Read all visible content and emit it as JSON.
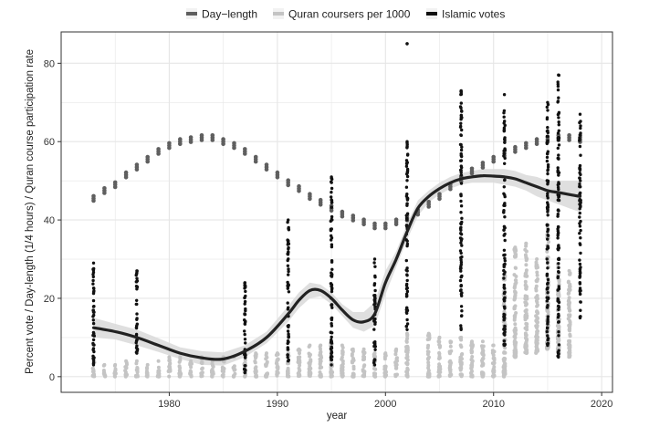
{
  "chart_data": {
    "type": "scatter",
    "title": "",
    "xlabel": "year",
    "ylabel": "Percent vote / Day-length (1/4 hours) / Quran course participation rate",
    "xlim": [
      1970,
      2021
    ],
    "ylim": [
      -4,
      88
    ],
    "x_ticks": [
      1980,
      1990,
      2000,
      2010,
      2020
    ],
    "y_ticks": [
      0,
      20,
      40,
      60,
      80
    ],
    "grid": true,
    "legend_position": "top",
    "legend": [
      {
        "label": "Day−length",
        "color": "#5f5f5f"
      },
      {
        "label": "Quran coursers per 1000",
        "color": "#c4c4c4"
      },
      {
        "label": "Islamic votes",
        "color": "#111111"
      }
    ],
    "series": [
      {
        "name": "Day−length",
        "color": "#5f5f5f",
        "kind": "points",
        "x": [
          1973,
          1974,
          1975,
          1976,
          1977,
          1978,
          1979,
          1980,
          1981,
          1982,
          1983,
          1984,
          1985,
          1986,
          1987,
          1988,
          1989,
          1990,
          1991,
          1992,
          1993,
          1994,
          1995,
          1996,
          1997,
          1998,
          1999,
          2000,
          2001,
          2002,
          2003,
          2004,
          2005,
          2006,
          2007,
          2008,
          2009,
          2010,
          2011,
          2012,
          2013,
          2014,
          2015,
          2016,
          2017,
          2018
        ],
        "y": [
          45.5,
          47.5,
          49,
          51.5,
          53.5,
          55.5,
          57.5,
          59,
          60,
          60.5,
          61,
          61,
          60,
          59,
          57.5,
          55.5,
          53.5,
          51.5,
          49.5,
          48,
          46,
          44.5,
          43,
          41.5,
          40.5,
          39.5,
          38.5,
          38.5,
          39.5,
          40.5,
          42,
          44,
          46,
          48.5,
          50.5,
          52.5,
          54,
          55.5,
          57,
          58,
          59,
          60,
          60.5,
          61,
          61,
          60.5
        ]
      },
      {
        "name": "Quran coursers per 1000",
        "color": "#c4c4c4",
        "kind": "columns",
        "x": [
          1973,
          1974,
          1975,
          1976,
          1977,
          1978,
          1979,
          1980,
          1981,
          1982,
          1983,
          1984,
          1985,
          1986,
          1987,
          1988,
          1989,
          1990,
          1991,
          1992,
          1993,
          1994,
          1995,
          1996,
          1997,
          1998,
          1999,
          2000,
          2001,
          2002,
          2004,
          2005,
          2006,
          2007,
          2008,
          2009,
          2010,
          2011,
          2012,
          2013,
          2014,
          2015,
          2016,
          2017
        ],
        "ymin": [
          0,
          0,
          0,
          0,
          0,
          0,
          0,
          0,
          0,
          0,
          0,
          0,
          0,
          0,
          0,
          0,
          0,
          0,
          0,
          0,
          0,
          0,
          0,
          0,
          0,
          0,
          0,
          0,
          0,
          0,
          0,
          0,
          0,
          0,
          0,
          0,
          0,
          0,
          5,
          6,
          6,
          7,
          6,
          5
        ],
        "ymax": [
          4,
          3,
          3,
          4,
          4,
          3,
          4,
          5,
          5,
          4,
          5,
          4,
          5,
          5,
          5,
          6,
          6,
          6,
          7,
          7,
          8,
          8,
          9,
          8,
          7,
          7,
          6,
          6,
          7,
          11,
          11,
          10,
          9,
          10,
          9,
          9,
          8,
          28,
          33,
          34,
          30,
          38,
          30,
          27
        ]
      },
      {
        "name": "Islamic votes",
        "color": "#111111",
        "kind": "columns",
        "x": [
          1973,
          1977,
          1987,
          1991,
          1995,
          1999,
          2002,
          2007,
          2011,
          2015,
          2016,
          2018
        ],
        "ymin": [
          3,
          6,
          1,
          4,
          3,
          3,
          12,
          12,
          8,
          8,
          5,
          15
        ],
        "ymax": [
          29,
          27,
          24,
          40,
          51,
          30,
          60,
          73,
          72,
          70,
          77,
          67
        ]
      },
      {
        "name": "Islamic votes outlier",
        "color": "#111111",
        "kind": "points",
        "x": [
          2002
        ],
        "y": [
          85
        ]
      },
      {
        "name": "Islamic votes smooth",
        "color": "#222222",
        "kind": "line",
        "x": [
          1973,
          1975,
          1977,
          1979,
          1981,
          1983,
          1985,
          1987,
          1989,
          1991,
          1992,
          1993,
          1994,
          1995,
          1996,
          1997,
          1998,
          1999,
          2000,
          2001,
          2002,
          2003,
          2004,
          2005,
          2006,
          2007,
          2008,
          2009,
          2010,
          2011,
          2012,
          2013,
          2014,
          2015,
          2016,
          2017,
          2018
        ],
        "y": [
          12.5,
          11.5,
          10,
          8,
          6,
          4.8,
          4.5,
          6.5,
          10,
          16,
          19.5,
          22,
          22,
          20,
          17,
          14.5,
          14,
          16,
          24,
          30,
          37,
          43,
          46,
          48,
          49.5,
          50.5,
          51,
          51.3,
          51.2,
          51,
          50.5,
          49.5,
          48.5,
          47.5,
          47,
          46.5,
          46
        ],
        "band_lower": [
          10,
          9.5,
          8,
          6.3,
          4.5,
          3,
          2.8,
          5,
          8.5,
          14,
          17.5,
          20,
          20.5,
          18.5,
          15.5,
          12.5,
          11.5,
          13,
          21,
          28,
          35,
          41,
          44.5,
          46.5,
          48,
          49,
          49.5,
          49.5,
          49.5,
          49,
          48.5,
          47.5,
          46,
          45,
          44,
          43,
          42
        ],
        "band_upper": [
          15,
          13.5,
          12,
          9.8,
          7.5,
          6.5,
          6.2,
          8,
          11.5,
          18,
          21.5,
          24,
          23.5,
          21.5,
          18.5,
          16.5,
          16.5,
          19,
          27,
          32,
          39,
          45,
          47.5,
          49.5,
          51,
          52,
          52.5,
          53,
          53,
          53,
          52.5,
          51.5,
          51,
          50,
          50,
          50,
          50
        ]
      }
    ]
  }
}
